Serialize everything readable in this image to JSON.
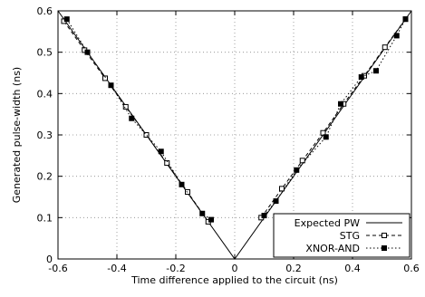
{
  "chart_data": {
    "type": "line",
    "title": "",
    "xlabel": "Time difference applied to the circuit (ns)",
    "ylabel": "Generated pulse-width (ns)",
    "xlim": [
      -0.6,
      0.6
    ],
    "ylim": [
      0,
      0.6
    ],
    "xticks": [
      -0.6,
      -0.4,
      -0.2,
      0,
      0.2,
      0.4,
      0.6
    ],
    "xtick_labels": [
      "-0.6",
      "-0.4",
      "-0.2",
      "0",
      "0.2",
      "0.4",
      "0.6"
    ],
    "yticks": [
      0,
      0.1,
      0.2,
      0.3,
      0.4,
      0.5,
      0.6
    ],
    "ytick_labels": [
      "0",
      "0.1",
      "0.2",
      "0.3",
      "0.4",
      "0.5",
      "0.6"
    ],
    "grid": true,
    "legend_position": "bottom-right",
    "series": [
      {
        "name": "Expected PW",
        "style": "solid",
        "marker": "none",
        "x": [
          -0.6,
          0,
          0.6
        ],
        "y": [
          0.6,
          0,
          0.6
        ]
      },
      {
        "name": "STG",
        "style": "dashed",
        "marker": "open-square",
        "x": [
          -0.58,
          -0.51,
          -0.44,
          -0.37,
          -0.3,
          -0.23,
          -0.16,
          -0.09,
          0.09,
          0.16,
          0.23,
          0.3,
          0.37,
          0.44,
          0.51,
          0.58
        ],
        "y": [
          0.575,
          0.505,
          0.437,
          0.368,
          0.3,
          0.232,
          0.162,
          0.09,
          0.1,
          0.17,
          0.238,
          0.305,
          0.375,
          0.443,
          0.512,
          0.58
        ]
      },
      {
        "name": "XNOR-AND",
        "style": "dotted",
        "marker": "filled-square",
        "x": [
          -0.57,
          -0.5,
          -0.42,
          -0.35,
          -0.25,
          -0.18,
          -0.11,
          -0.08,
          0.1,
          0.14,
          0.21,
          0.31,
          0.36,
          0.43,
          0.48,
          0.55,
          0.58
        ],
        "y": [
          0.58,
          0.5,
          0.42,
          0.34,
          0.26,
          0.18,
          0.11,
          0.095,
          0.105,
          0.14,
          0.215,
          0.295,
          0.375,
          0.44,
          0.455,
          0.54,
          0.58
        ]
      }
    ]
  }
}
